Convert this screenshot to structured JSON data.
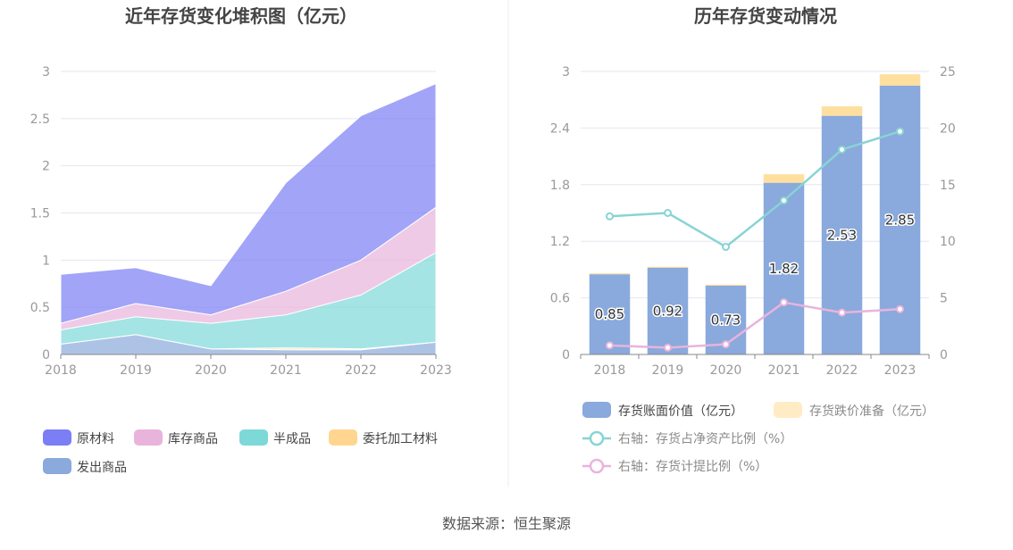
{
  "source_text": "数据来源：恒生聚源",
  "colors": {
    "raw": "#7b7ef5",
    "stock": "#e8b4dc",
    "semi": "#7dd8d8",
    "consign": "#ffd58f",
    "shipped": "#8aa9dc",
    "book_bar": "#8aa9dc",
    "reserve_bar": "#ffdf9e",
    "ratio_line": "#88d4d4",
    "provision_line": "#e8b4dc"
  },
  "chart_data": [
    {
      "type": "area",
      "title": "近年存货变化堆积图（亿元）",
      "categories": [
        "2018",
        "2019",
        "2020",
        "2021",
        "2022",
        "2023"
      ],
      "stacked": true,
      "ylim": [
        0,
        3
      ],
      "yticks": [
        "0",
        "0.5",
        "1",
        "1.5",
        "2",
        "2.5",
        "3"
      ],
      "grid": true,
      "legend_position": "bottom",
      "series": [
        {
          "name": "发出商品",
          "color_key": "shipped",
          "values": [
            0.11,
            0.21,
            0.06,
            0.05,
            0.05,
            0.13
          ]
        },
        {
          "name": "委托加工材料",
          "color_key": "consign",
          "values": [
            0.0,
            0.0,
            0.0,
            0.02,
            0.01,
            0.0
          ]
        },
        {
          "name": "半成品",
          "color_key": "semi",
          "values": [
            0.15,
            0.19,
            0.27,
            0.35,
            0.57,
            0.95
          ]
        },
        {
          "name": "库存商品",
          "color_key": "stock",
          "values": [
            0.07,
            0.14,
            0.09,
            0.25,
            0.37,
            0.48
          ]
        },
        {
          "name": "原材料",
          "color_key": "raw",
          "values": [
            0.52,
            0.38,
            0.31,
            1.15,
            1.53,
            1.31
          ]
        }
      ],
      "legend_order": [
        "原材料",
        "库存商品",
        "半成品",
        "委托加工材料",
        "发出商品"
      ]
    },
    {
      "type": "bar",
      "title": "历年存货变动情况",
      "categories": [
        "2018",
        "2019",
        "2020",
        "2021",
        "2022",
        "2023"
      ],
      "ylim": [
        0,
        3
      ],
      "yticks": [
        "0",
        "0.6",
        "1.2",
        "1.8",
        "2.4",
        "3"
      ],
      "y2lim": [
        0,
        25
      ],
      "y2ticks": [
        "0",
        "5",
        "10",
        "15",
        "20",
        "25"
      ],
      "grid": true,
      "legend_position": "bottom",
      "bars": [
        {
          "name": "存货账面价值（亿元）",
          "color_key": "book_bar",
          "values": [
            0.85,
            0.92,
            0.73,
            1.82,
            2.53,
            2.85
          ],
          "labels": [
            "0.85",
            "0.92",
            "0.73",
            "1.82",
            "2.53",
            "2.85"
          ]
        },
        {
          "name": "存货跌价准备（亿元）",
          "color_key": "reserve_bar",
          "values": [
            0.01,
            0.01,
            0.01,
            0.09,
            0.1,
            0.12
          ]
        }
      ],
      "lines": [
        {
          "name": "右轴：存货占净资产比例（%）",
          "color_key": "ratio_line",
          "axis": "right",
          "values": [
            12.2,
            12.5,
            9.5,
            13.6,
            18.1,
            19.7
          ]
        },
        {
          "name": "右轴：存货计提比例（%）",
          "color_key": "provision_line",
          "axis": "right",
          "values": [
            0.8,
            0.6,
            0.9,
            4.6,
            3.7,
            4.0
          ]
        }
      ]
    }
  ]
}
